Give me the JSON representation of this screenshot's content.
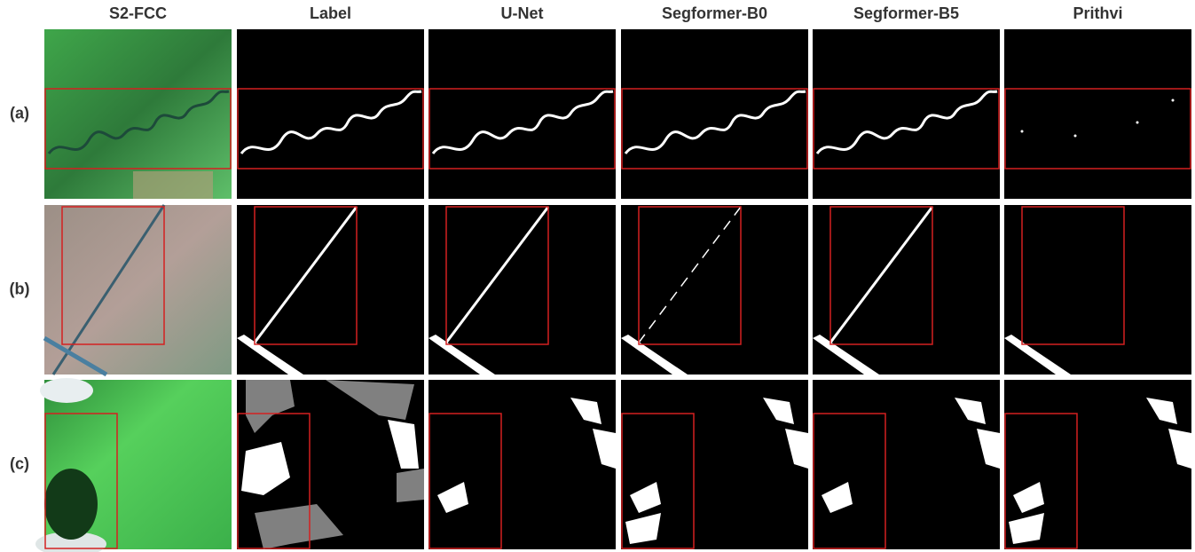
{
  "columns": [
    "S2-FCC",
    "Label",
    "U-Net",
    "Segformer-B0",
    "Segformer-B5",
    "Prithvi"
  ],
  "rows": [
    "(a)",
    "(b)",
    "(c)"
  ]
}
